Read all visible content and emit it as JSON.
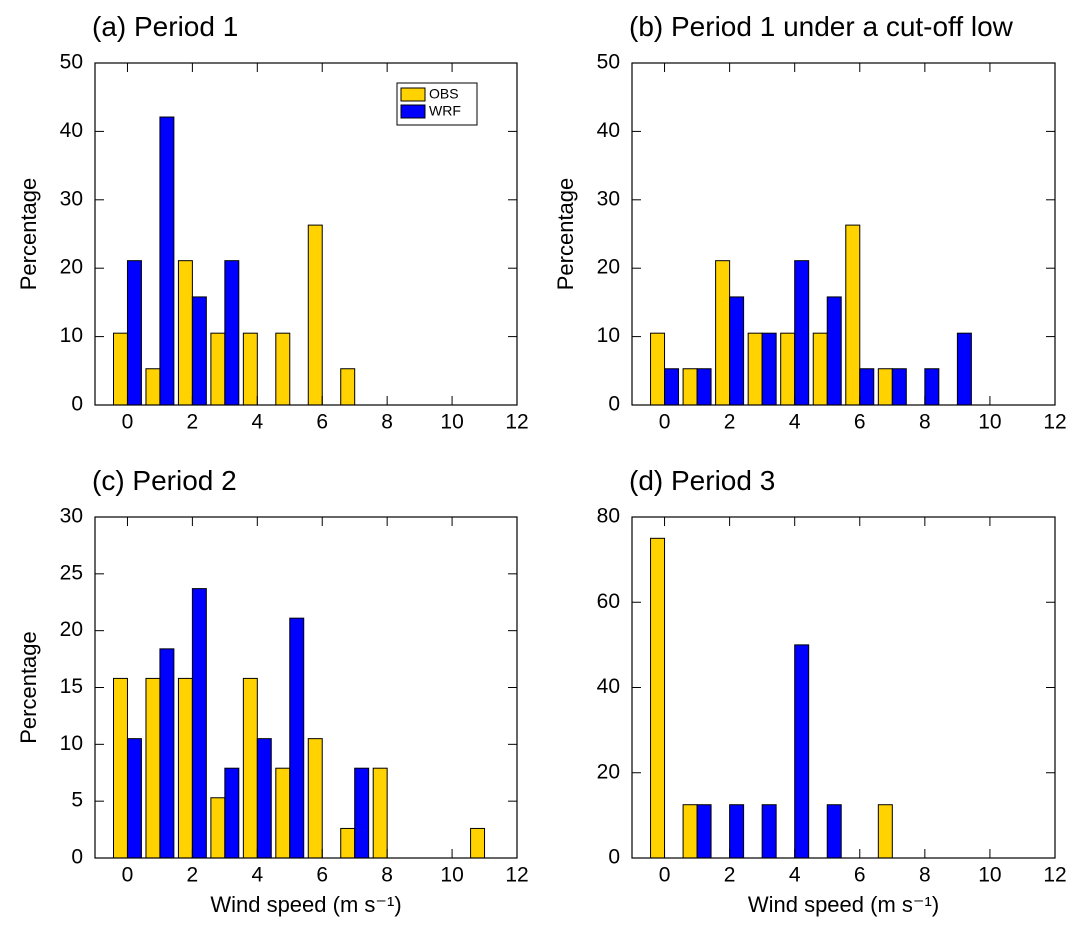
{
  "chart_data": [
    {
      "type": "bar",
      "title": "(a) Period 1",
      "ylabel": "Percentage",
      "x": [
        0,
        1,
        2,
        3,
        4,
        5,
        6,
        7,
        8,
        9,
        10,
        11
      ],
      "series": [
        {
          "name": "OBS",
          "color": "#ffd200",
          "values": [
            10.5,
            5.3,
            21.1,
            10.5,
            10.5,
            10.5,
            26.3,
            5.3,
            0,
            0,
            0,
            0
          ]
        },
        {
          "name": "WRF",
          "color": "#0000ff",
          "values": [
            21.1,
            42.1,
            15.8,
            21.1,
            0,
            0,
            0,
            0,
            0,
            0,
            0,
            0
          ]
        }
      ],
      "xlim": [
        -1,
        12
      ],
      "xticks": [
        0,
        2,
        4,
        6,
        8,
        10,
        12
      ],
      "ylim": [
        0,
        50
      ],
      "yticks": [
        0,
        10,
        20,
        30,
        40,
        50
      ],
      "legend": "upper right"
    },
    {
      "type": "bar",
      "title": "(b) Period 1 under a cut-off low",
      "ylabel": "Percentage",
      "x": [
        0,
        1,
        2,
        3,
        4,
        5,
        6,
        7,
        8,
        9,
        10,
        11
      ],
      "series": [
        {
          "color": "#ffd200",
          "values": [
            10.5,
            5.3,
            21.1,
            10.5,
            10.5,
            10.5,
            26.3,
            5.3,
            0,
            0,
            0,
            0
          ]
        },
        {
          "color": "#0000ff",
          "values": [
            5.3,
            5.3,
            15.8,
            10.5,
            21.1,
            15.8,
            5.3,
            5.3,
            5.3,
            10.5,
            0,
            0
          ]
        }
      ],
      "xlim": [
        -1,
        12
      ],
      "xticks": [
        0,
        2,
        4,
        6,
        8,
        10,
        12
      ],
      "ylim": [
        0,
        50
      ],
      "yticks": [
        0,
        10,
        20,
        30,
        40,
        50
      ]
    },
    {
      "type": "bar",
      "title": "(c) Period 2",
      "ylabel": "Percentage",
      "xlabel": "Wind speed (m s⁻¹)",
      "x": [
        0,
        1,
        2,
        3,
        4,
        5,
        6,
        7,
        8,
        9,
        10,
        11
      ],
      "series": [
        {
          "color": "#ffd200",
          "values": [
            15.8,
            15.8,
            15.8,
            5.3,
            15.8,
            7.9,
            10.5,
            2.6,
            7.9,
            0,
            0,
            2.6
          ]
        },
        {
          "color": "#0000ff",
          "values": [
            10.5,
            18.4,
            23.7,
            7.9,
            10.5,
            21.1,
            0,
            7.9,
            0,
            0,
            0,
            0
          ]
        }
      ],
      "xlim": [
        -1,
        12
      ],
      "xticks": [
        0,
        2,
        4,
        6,
        8,
        10,
        12
      ],
      "ylim": [
        0,
        30
      ],
      "yticks": [
        0,
        5,
        10,
        15,
        20,
        25,
        30
      ]
    },
    {
      "type": "bar",
      "title": "(d) Period 3",
      "xlabel": "Wind speed (m s⁻¹)",
      "x": [
        0,
        1,
        2,
        3,
        4,
        5,
        6,
        7,
        8,
        9,
        10,
        11
      ],
      "series": [
        {
          "color": "#ffd200",
          "values": [
            75,
            12.5,
            0,
            0,
            0,
            0,
            0,
            12.5,
            0,
            0,
            0,
            0
          ]
        },
        {
          "color": "#0000ff",
          "values": [
            0,
            12.5,
            12.5,
            12.5,
            50,
            12.5,
            0,
            0,
            0,
            0,
            0,
            0
          ]
        }
      ],
      "xlim": [
        -1,
        12
      ],
      "xticks": [
        0,
        2,
        4,
        6,
        8,
        10,
        12
      ],
      "ylim": [
        0,
        80
      ],
      "yticks": [
        0,
        20,
        40,
        60,
        80
      ]
    }
  ]
}
